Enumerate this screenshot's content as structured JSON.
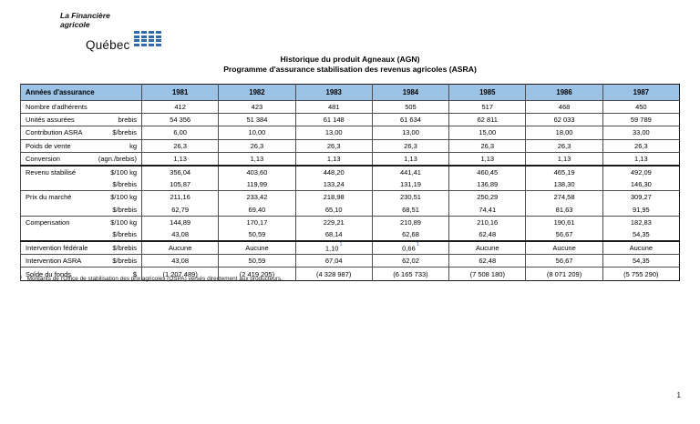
{
  "logo": {
    "line1": "La Financière",
    "line2": "agricole",
    "wordmark": "Québec"
  },
  "title": {
    "line1": "Historique du produit Agneaux (AGN)",
    "line2": "Programme d'assurance stabilisation des revenus agricoles (ASRA)"
  },
  "colors": {
    "header_bg": "#9CC2E5",
    "flag_blue": "#2F6BAE",
    "superscript_blue": "#4465C8"
  },
  "table": {
    "header_label": "Années d'assurance",
    "years": [
      "1981",
      "1982",
      "1983",
      "1984",
      "1985",
      "1986",
      "1987"
    ],
    "rows": [
      {
        "label": "Nombre d'adhérents",
        "unit": "",
        "sep": "normal",
        "values": [
          "412",
          "423",
          "481",
          "505",
          "517",
          "468",
          "450"
        ]
      },
      {
        "label": "Unités assurées",
        "unit": "brebis",
        "sep": "normal",
        "values": [
          "54 356",
          "51 384",
          "61 148",
          "61 634",
          "62 811",
          "62 033",
          "59 789"
        ]
      },
      {
        "label": "Contribution ASRA",
        "unit": "$/brebis",
        "sep": "normal",
        "values": [
          "6,00",
          "10,00",
          "13,00",
          "13,00",
          "15,00",
          "18,00",
          "33,00"
        ]
      },
      {
        "label": "Poids de vente",
        "unit": "kg",
        "sep": "normal",
        "values": [
          "26,3",
          "26,3",
          "26,3",
          "26,3",
          "26,3",
          "26,3",
          "26,3"
        ]
      },
      {
        "label": "Conversion",
        "unit": "(agn./brebis)",
        "sep": "normal",
        "values": [
          "1,13",
          "1,13",
          "1,13",
          "1,13",
          "1,13",
          "1,13",
          "1,13"
        ]
      },
      {
        "label": "Revenu stabilisé",
        "unit": "$/100 kg",
        "sep": "thick",
        "values": [
          "356,04",
          "403,60",
          "448,20",
          "441,41",
          "460,45",
          "465,19",
          "492,09"
        ]
      },
      {
        "label": "",
        "unit": "$/brebis",
        "sep": "none",
        "values": [
          "105,87",
          "119,99",
          "133,24",
          "131,19",
          "136,89",
          "138,30",
          "146,30"
        ]
      },
      {
        "label": "Prix du marché",
        "unit": "$/100 kg",
        "sep": "normal",
        "values": [
          "211,16",
          "233,42",
          "218,98",
          "230,51",
          "250,29",
          "274,58",
          "309,27"
        ]
      },
      {
        "label": "",
        "unit": "$/brebis",
        "sep": "none",
        "values": [
          "62,79",
          "69,40",
          "65,10",
          "68,51",
          "74,41",
          "81,63",
          "91,95"
        ]
      },
      {
        "label": "Compensation",
        "unit": "$/100 kg",
        "sep": "normal",
        "values": [
          "144,89",
          "170,17",
          "229,21",
          "210,89",
          "210,16",
          "190,61",
          "182,83"
        ]
      },
      {
        "label": "",
        "unit": "$/brebis",
        "sep": "none",
        "values": [
          "43,08",
          "50,59",
          "68,14",
          "62,68",
          "62,48",
          "56,67",
          "54,35"
        ]
      },
      {
        "label": "Intervention fédérale",
        "unit": "$/brebis",
        "sep": "thick",
        "values": [
          "Aucune",
          "Aucune",
          "1,10",
          "0,66",
          "Aucune",
          "Aucune",
          "Aucune"
        ],
        "sup": [
          false,
          false,
          true,
          true,
          false,
          false,
          false
        ]
      },
      {
        "label": "Intervention ASRA",
        "unit": "$/brebis",
        "sep": "normal",
        "values": [
          "43,08",
          "50,59",
          "67,04",
          "62,02",
          "62,48",
          "56,67",
          "54,35"
        ]
      },
      {
        "label": "Solde du fonds",
        "unit": "$",
        "sep": "normal",
        "values": [
          "(1 207 489)",
          "(2 419 205)",
          "(4 328 987)",
          "(6 165 733)",
          "(7 508 180)",
          "(8 071 209)",
          "(5 755 290)"
        ]
      }
    ]
  },
  "footnote": {
    "marker": "1",
    "text": "Montants de l'Office de stabilisation des prix agricoles (OSPA) versés directement aux producteurs."
  },
  "page_number": "1"
}
